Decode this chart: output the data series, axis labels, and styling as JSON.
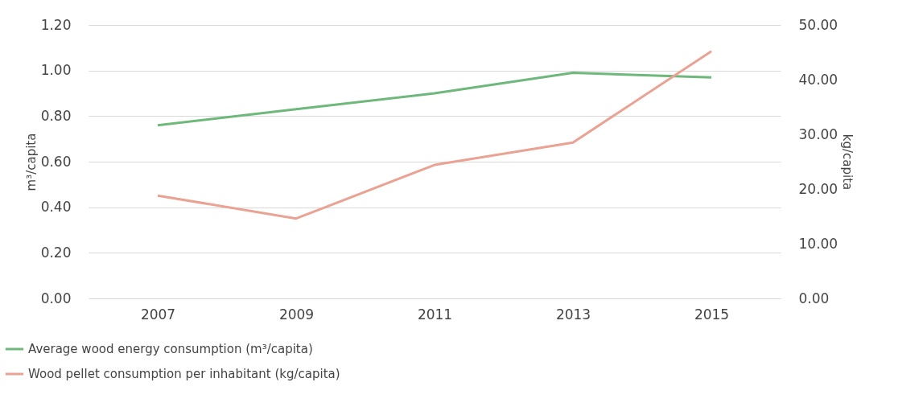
{
  "chart_data": {
    "type": "line",
    "categories": [
      "2007",
      "2009",
      "2011",
      "2013",
      "2015"
    ],
    "series": [
      {
        "name": "Average wood energy consumption (m³/capita)",
        "color": "#6db87a",
        "values": [
          0.76,
          0.83,
          0.9,
          0.99,
          0.97
        ]
      },
      {
        "name": "Wood pellet consumption per inhabitant (kg/capita)",
        "color": "#eaa293",
        "values": [
          18.8,
          14.6,
          24.4,
          28.5,
          45.2
        ],
        "axis": "y2"
      }
    ],
    "ylabel": "m³/capita",
    "y2label": "kg/capita",
    "ylim": [
      0,
      1.2
    ],
    "yticks": [
      {
        "value": 0,
        "label": "0.00"
      },
      {
        "value": 0.2,
        "label": "0.20"
      },
      {
        "value": 0.4,
        "label": "0.40"
      },
      {
        "value": 0.6,
        "label": "0.60"
      },
      {
        "value": 0.8,
        "label": "0.80"
      },
      {
        "value": 1,
        "label": "1.00"
      },
      {
        "value": 1.2,
        "label": "1.20"
      }
    ],
    "y2lim": [
      0,
      50
    ],
    "y2ticks": [
      {
        "value": 0,
        "label": "0.00"
      },
      {
        "value": 10,
        "label": "10.00"
      },
      {
        "value": 20,
        "label": "20.00"
      },
      {
        "value": 30,
        "label": "30.00"
      },
      {
        "value": 40,
        "label": "40.00"
      },
      {
        "value": 50,
        "label": "50.00"
      }
    ],
    "grid": "y",
    "legend": "bottom left",
    "marker": "none",
    "line_style": "solid"
  }
}
